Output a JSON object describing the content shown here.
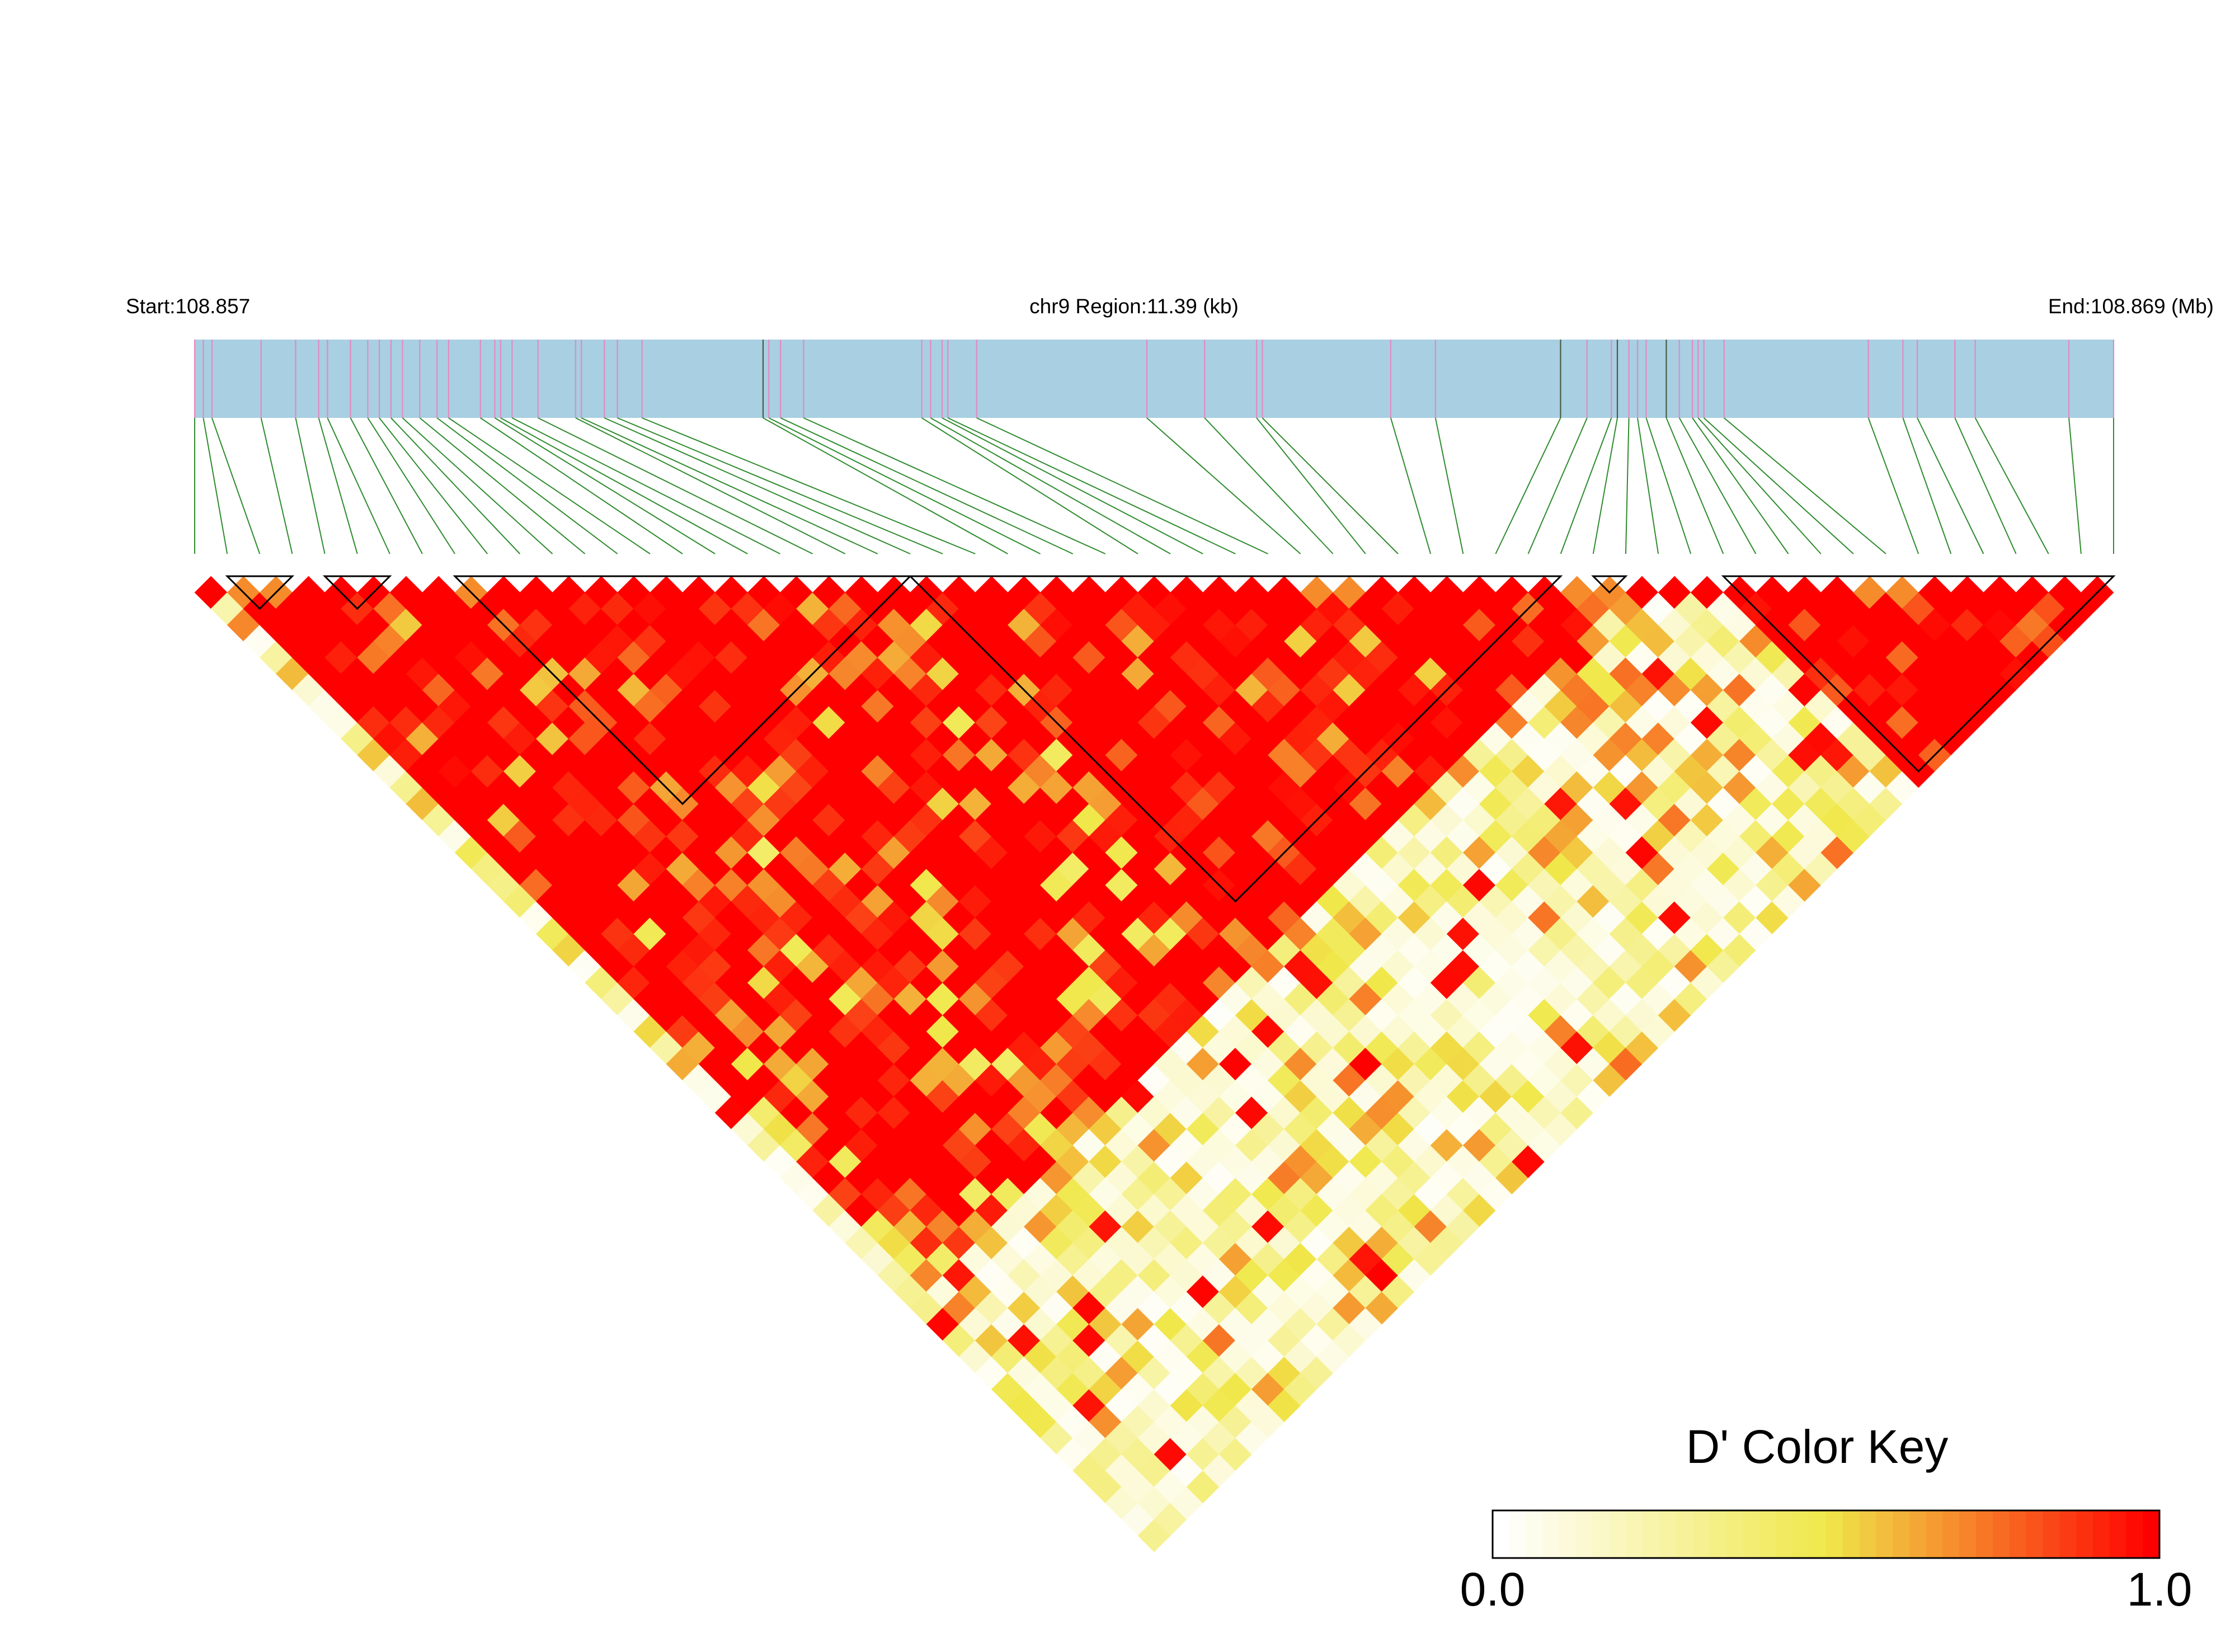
{
  "header": {
    "start_label": "Start:108.857",
    "region_label": "chr9 Region:11.39 (kb)",
    "end_label": "End:108.869 (Mb)"
  },
  "colors": {
    "track_fill": "#a8cfe2",
    "snp_tick": "#e48ac0",
    "snp_tick_dark": "#4a5a46",
    "connector": "#2e8b2e",
    "block_outline": "#000000",
    "d_low": "#ffffff",
    "d_mid": "#f0e84a",
    "d_high": "#ff0000"
  },
  "color_key": {
    "title": "D' Color Key",
    "min_label": "0.0",
    "max_label": "1.0",
    "steps": 40
  },
  "chart_data": {
    "type": "heatmap",
    "chromosome": "chr9",
    "region_start_mb": 108.857,
    "region_end_mb": 108.869,
    "region_length_kb": 11.39,
    "n_snps": 60,
    "snp_positions_frac": [
      0.0,
      0.0045,
      0.009,
      0.0346,
      0.0526,
      0.0646,
      0.0692,
      0.0812,
      0.0902,
      0.0962,
      0.1023,
      0.1083,
      0.1173,
      0.1263,
      0.1323,
      0.1489,
      0.1564,
      0.1594,
      0.1654,
      0.1789,
      0.1985,
      0.2015,
      0.2135,
      0.2203,
      0.2331,
      0.2962,
      0.2992,
      0.3053,
      0.3173,
      0.3789,
      0.3835,
      0.3895,
      0.3925,
      0.4075,
      0.4962,
      0.5263,
      0.5534,
      0.5564,
      0.6233,
      0.6466,
      0.7118,
      0.7256,
      0.7383,
      0.7414,
      0.7474,
      0.7519,
      0.7564,
      0.7669,
      0.7737,
      0.7805,
      0.7835,
      0.7865,
      0.797,
      0.8722,
      0.8902,
      0.8977,
      0.9173,
      0.9279,
      0.9767,
      1.0
    ],
    "d_prime_scale": [
      0.0,
      1.0
    ],
    "ld_blocks": [
      {
        "start": 1,
        "end": 3
      },
      {
        "start": 4,
        "end": 6
      },
      {
        "start": 8,
        "end": 22
      },
      {
        "start": 22,
        "end": 42
      },
      {
        "start": 43,
        "end": 44
      },
      {
        "start": 47,
        "end": 59
      }
    ],
    "d_prime_matrix_seed": 20240917,
    "high_ld_regions": [
      [
        1,
        21
      ],
      [
        22,
        44
      ],
      [
        47,
        59
      ]
    ]
  }
}
